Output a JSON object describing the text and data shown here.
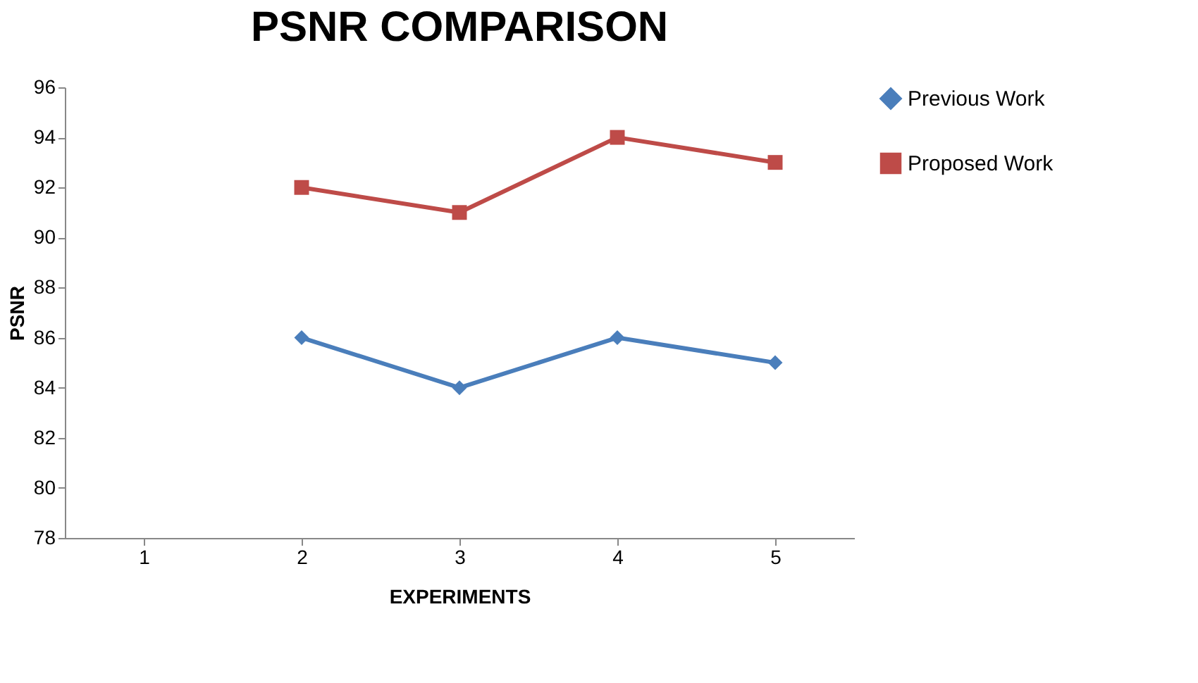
{
  "chart_data": {
    "type": "line",
    "title": "PSNR COMPARISON",
    "xlabel": "EXPERIMENTS",
    "ylabel": "PSNR",
    "categories": [
      "1",
      "2",
      "3",
      "4",
      "5"
    ],
    "series": [
      {
        "name": "Previous Work",
        "color": "#4a7ebb",
        "marker": "diamond",
        "values": [
          null,
          86,
          84,
          86,
          85
        ]
      },
      {
        "name": "Proposed Work",
        "color": "#be4b48",
        "marker": "square",
        "values": [
          null,
          92,
          91,
          94,
          93
        ]
      }
    ],
    "ylim": [
      78,
      96
    ],
    "yticks": [
      78,
      80,
      82,
      84,
      86,
      88,
      90,
      92,
      94,
      96
    ],
    "grid": false,
    "legend": "right"
  }
}
